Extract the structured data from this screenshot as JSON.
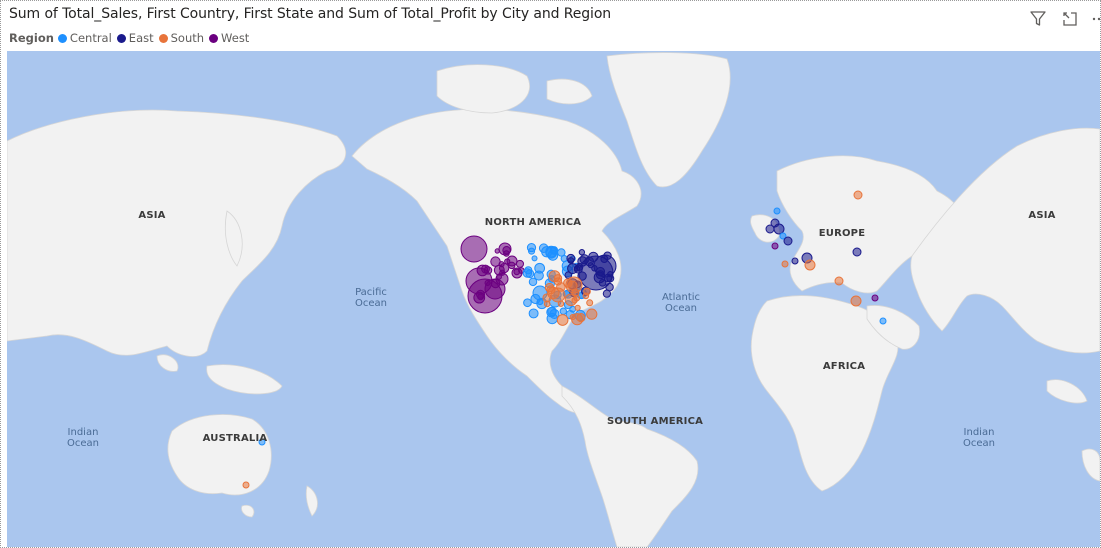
{
  "visual": {
    "title": "Sum of Total_Sales, First Country, First State and Sum of Total_Profit by City and Region",
    "legend": {
      "title": "Region",
      "items": [
        {
          "label": "Central",
          "color": "#1e90ff"
        },
        {
          "label": "East",
          "color": "#1a1a8c"
        },
        {
          "label": "South",
          "color": "#e8743b"
        },
        {
          "label": "West",
          "color": "#6b0080"
        }
      ]
    },
    "toolbar": {
      "filter_icon": "funnel-icon",
      "focus_icon": "expand-icon",
      "more_icon": "more-options-icon"
    }
  },
  "map": {
    "water_color": "#aac6ee",
    "land_color": "#f2f2f2",
    "continents": [
      "ASIA",
      "NORTH AMERICA",
      "EUROPE",
      "AFRICA",
      "SOUTH AMERICA",
      "AUSTRALIA",
      "ASIA"
    ],
    "oceans": [
      [
        "Pacific",
        "Ocean"
      ],
      [
        "Atlantic",
        "Ocean"
      ],
      [
        "Indian",
        "Ocean"
      ],
      [
        "Indian",
        "Ocean"
      ]
    ]
  }
}
